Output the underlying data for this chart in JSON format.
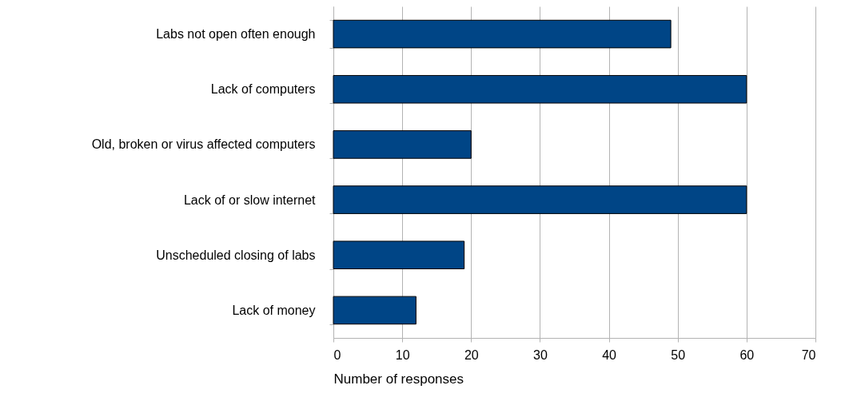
{
  "chart_data": {
    "type": "bar",
    "orientation": "horizontal",
    "xlabel": "Number of responses",
    "categories": [
      "Labs not open often enough",
      "Lack of computers",
      "Old, broken or virus affected computers",
      "Lack of or slow internet",
      "Unscheduled closing of labs",
      "Lack of money "
    ],
    "values": [
      49,
      60,
      20,
      60,
      19,
      12
    ],
    "color": "#004586",
    "xlim": [
      0,
      70
    ],
    "xticks": [
      0,
      10,
      20,
      30,
      40,
      50,
      60,
      70
    ],
    "grid": "x"
  }
}
